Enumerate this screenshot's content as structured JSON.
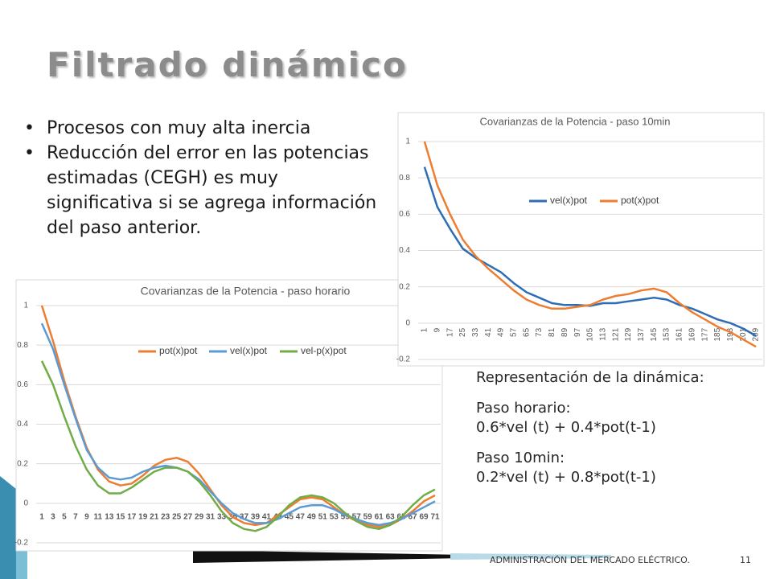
{
  "slide": {
    "title": "Filtrado dinámico",
    "bullets": [
      "Procesos con muy alta inercia",
      "Reducción del error en las potencias estimadas (CEGH) es muy significativa si se agrega información del paso anterior."
    ],
    "notes": [
      "Representación de la dinámica:",
      "Paso horario:",
      "0.6*vel (t) + 0.4*pot(t-1)",
      "Paso 10min:",
      "0.2*vel (t) + 0.8*pot(t-1)"
    ],
    "footer": "ADMINISTRACIÓN DEL MERCADO ELÉCTRICO.",
    "page_number": "11"
  },
  "chart_data": [
    {
      "type": "line",
      "title": "Covarianzas de la Potencia - paso horario",
      "categories": [
        "1",
        "3",
        "5",
        "7",
        "9",
        "11",
        "13",
        "15",
        "17",
        "19",
        "21",
        "23",
        "25",
        "27",
        "29",
        "31",
        "33",
        "35",
        "37",
        "39",
        "41",
        "43",
        "45",
        "47",
        "49",
        "51",
        "53",
        "55",
        "57",
        "59",
        "61",
        "63",
        "65",
        "67",
        "69",
        "71"
      ],
      "series": [
        {
          "name": "pot(x)pot",
          "color": "#ed7d31",
          "values": [
            1.0,
            0.82,
            0.62,
            0.44,
            0.28,
            0.17,
            0.11,
            0.09,
            0.1,
            0.14,
            0.19,
            0.22,
            0.23,
            0.21,
            0.15,
            0.07,
            -0.01,
            -0.07,
            -0.1,
            -0.11,
            -0.1,
            -0.06,
            -0.02,
            0.02,
            0.03,
            0.02,
            -0.02,
            -0.06,
            -0.09,
            -0.11,
            -0.12,
            -0.11,
            -0.08,
            -0.04,
            0.01,
            0.04
          ]
        },
        {
          "name": "vel(x)pot",
          "color": "#5b9bd5",
          "values": [
            0.91,
            0.78,
            0.6,
            0.43,
            0.27,
            0.18,
            0.13,
            0.12,
            0.13,
            0.16,
            0.18,
            0.19,
            0.18,
            0.16,
            0.12,
            0.06,
            0.0,
            -0.05,
            -0.08,
            -0.1,
            -0.1,
            -0.08,
            -0.05,
            -0.02,
            -0.01,
            -0.01,
            -0.03,
            -0.06,
            -0.08,
            -0.1,
            -0.11,
            -0.1,
            -0.08,
            -0.05,
            -0.02,
            0.01
          ]
        },
        {
          "name": "vel-p(x)pot",
          "color": "#70ad47",
          "values": [
            0.72,
            0.6,
            0.44,
            0.29,
            0.17,
            0.09,
            0.05,
            0.05,
            0.08,
            0.12,
            0.16,
            0.18,
            0.18,
            0.16,
            0.11,
            0.04,
            -0.04,
            -0.1,
            -0.13,
            -0.14,
            -0.12,
            -0.07,
            -0.01,
            0.03,
            0.04,
            0.03,
            0.0,
            -0.05,
            -0.09,
            -0.12,
            -0.13,
            -0.11,
            -0.07,
            -0.01,
            0.04,
            0.07
          ]
        }
      ],
      "ylim": [
        -0.2,
        1
      ],
      "yticks": [
        -0.2,
        0,
        0.2,
        0.4,
        0.6,
        0.8,
        1
      ],
      "grid": true
    },
    {
      "type": "line",
      "title": "Covarianzas de la Potencia - paso 10min",
      "categories": [
        "1",
        "9",
        "17",
        "25",
        "33",
        "41",
        "49",
        "57",
        "65",
        "73",
        "81",
        "89",
        "97",
        "105",
        "113",
        "121",
        "129",
        "137",
        "145",
        "153",
        "161",
        "169",
        "177",
        "185",
        "193",
        "201",
        "209"
      ],
      "series": [
        {
          "name": "vel(x)pot",
          "color": "#2e6db4",
          "values": [
            0.86,
            0.64,
            0.52,
            0.41,
            0.36,
            0.32,
            0.28,
            0.22,
            0.17,
            0.14,
            0.11,
            0.1,
            0.1,
            0.095,
            0.11,
            0.11,
            0.12,
            0.13,
            0.14,
            0.13,
            0.1,
            0.08,
            0.05,
            0.02,
            0.0,
            -0.03,
            -0.07
          ]
        },
        {
          "name": "pot(x)pot",
          "color": "#ed7d31",
          "values": [
            1.0,
            0.76,
            0.6,
            0.46,
            0.37,
            0.3,
            0.24,
            0.18,
            0.13,
            0.1,
            0.08,
            0.08,
            0.09,
            0.1,
            0.13,
            0.15,
            0.16,
            0.18,
            0.19,
            0.17,
            0.11,
            0.06,
            0.02,
            -0.02,
            -0.05,
            -0.09,
            -0.13
          ]
        }
      ],
      "ylim": [
        -0.2,
        1
      ],
      "yticks": [
        -0.2,
        0,
        0.2,
        0.4,
        0.6,
        0.8,
        1
      ],
      "grid": true
    }
  ]
}
